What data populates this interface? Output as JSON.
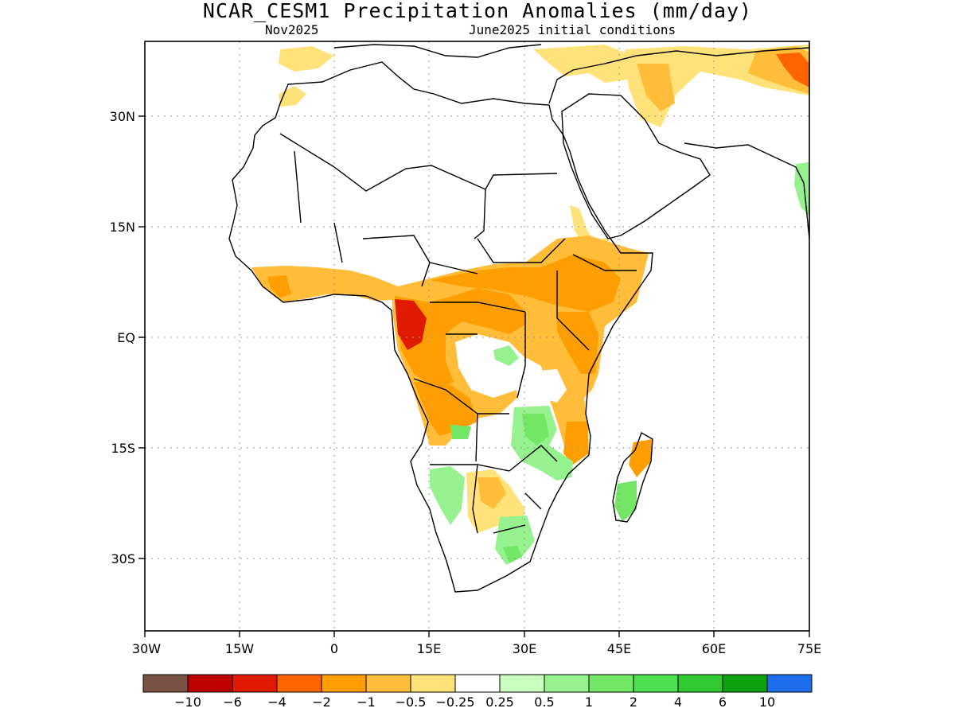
{
  "title": "NCAR_CESM1 Precipitation Anomalies (mm/day)",
  "subtitle_left": "Nov2025",
  "subtitle_right": "June2025 initial conditions",
  "map": {
    "lon_range": [
      -30,
      75
    ],
    "lat_range": [
      -40,
      41
    ],
    "grid": true,
    "x_ticks": [
      "30W",
      "15W",
      "0",
      "15E",
      "30E",
      "45E",
      "60E",
      "75E"
    ],
    "y_ticks": [
      "30N",
      "15N",
      "EQ",
      "15S",
      "30S"
    ],
    "colors": {
      "land_outline": "#000000",
      "grid": "#9a9a9a"
    }
  },
  "colorbar": {
    "colors": [
      "#7a5245",
      "#bf0000",
      "#e01a00",
      "#ff6400",
      "#ff9e00",
      "#ffbd3a",
      "#ffe37a",
      "#ffffff",
      "#c8ffbe",
      "#96f28e",
      "#74e866",
      "#4fe052",
      "#32c832",
      "#0ea00e",
      "#1e6eeb"
    ],
    "labels": [
      "−10",
      "−6",
      "−4",
      "−2",
      "−1",
      "−0.5",
      "−0.25",
      "0.25",
      "0.5",
      "1",
      "2",
      "4",
      "6",
      "10"
    ]
  },
  "regions": [
    {
      "name": "Gulf of Guinea coast dry anomaly",
      "color": "#ffbd3a"
    },
    {
      "name": "Central Africa dry anomaly",
      "color": "#ff9e00"
    },
    {
      "name": "Gabon / Congo strong dry anomaly",
      "color": "#e01a00"
    },
    {
      "name": "East Africa dry anomaly",
      "color": "#ffbd3a"
    },
    {
      "name": "Southeast Africa wet anomaly",
      "color": "#96f28e"
    },
    {
      "name": "Madagascar wet anomaly",
      "color": "#74e866"
    },
    {
      "name": "Southern Africa wet anomaly",
      "color": "#96f28e"
    },
    {
      "name": "India west coast wet anomaly",
      "color": "#96f28e"
    },
    {
      "name": "Mediterranean / Middle East dry anomaly",
      "color": "#ffe37a"
    }
  ]
}
